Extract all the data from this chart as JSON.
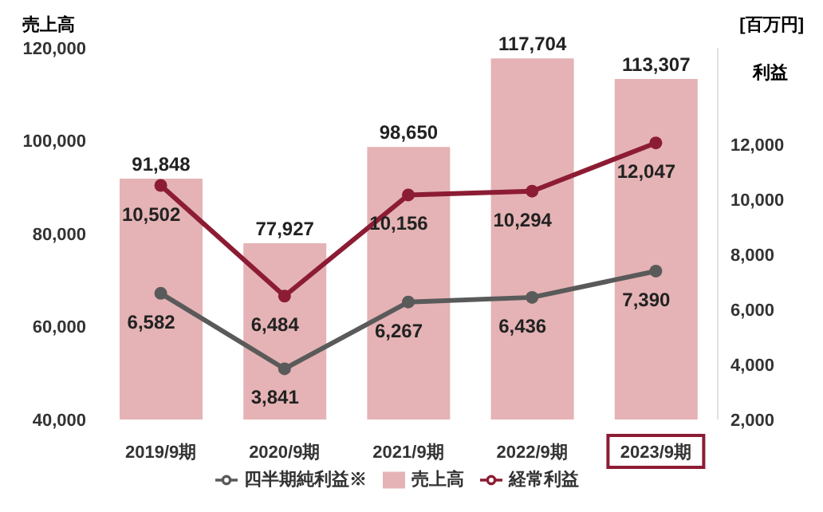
{
  "chart_data": {
    "type": "bar",
    "ylabel": "売上高",
    "y2label": "利益",
    "annotations": [
      "[百万円]"
    ],
    "categories": [
      "2019/9期",
      "2020/9期",
      "2021/9期",
      "2022/9期",
      "2023/9期"
    ],
    "series": [
      {
        "name": "売上高",
        "color": "#e5b3b5",
        "values": [
          91848,
          77927,
          98650,
          117704,
          113307
        ],
        "value_labels": [
          "91,848",
          "77,927",
          "98,650",
          "117,704",
          "113,307"
        ]
      },
      {
        "name": "経常利益",
        "type": "line",
        "axis": "y2",
        "color": "#8c1c34",
        "values": [
          10502,
          6484,
          10156,
          10294,
          12047
        ],
        "value_labels": [
          "10,502",
          "6,484",
          "10,156",
          "10,294",
          "12,047"
        ]
      },
      {
        "name": "四半期純利益※",
        "type": "line",
        "axis": "y2",
        "color": "#5a5a5a",
        "values": [
          6582,
          3841,
          6267,
          6436,
          7390
        ],
        "value_labels": [
          "6,582",
          "3,841",
          "6,267",
          "6,436",
          "7,390"
        ]
      }
    ],
    "ylim": [
      40000,
      120000
    ],
    "yticks": [
      {
        "value": 40000,
        "label": "40,000"
      },
      {
        "value": 60000,
        "label": "60,000"
      },
      {
        "value": 80000,
        "label": "80,000"
      },
      {
        "value": 100000,
        "label": "100,000"
      },
      {
        "value": 120000,
        "label": "120,000"
      }
    ],
    "y2lim": [
      2000,
      15500
    ],
    "y2ticks": [
      {
        "value": 2000,
        "label": "2,000"
      },
      {
        "value": 4000,
        "label": "4,000"
      },
      {
        "value": 6000,
        "label": "6,000"
      },
      {
        "value": 8000,
        "label": "8,000"
      },
      {
        "value": 10000,
        "label": "10,000"
      },
      {
        "value": 12000,
        "label": "12,000"
      }
    ],
    "marker": "circle",
    "legend": "bottom",
    "grid": false
  }
}
